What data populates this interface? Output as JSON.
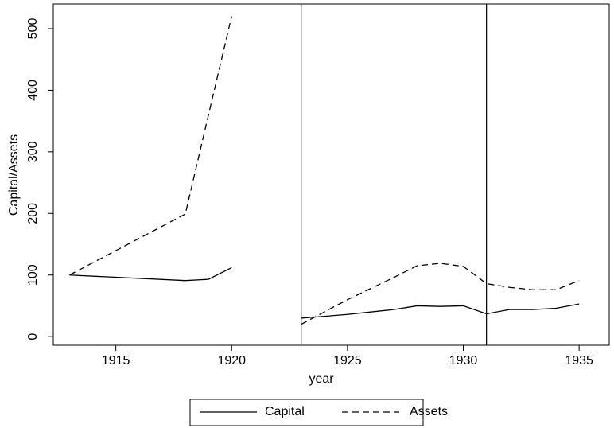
{
  "chart_data": {
    "type": "line",
    "x_label": "year",
    "y_label": "Capital/Assets",
    "x": [
      1913,
      1918,
      1919,
      1920,
      1921,
      1922,
      1923,
      1924,
      1925,
      1926,
      1927,
      1928,
      1929,
      1930,
      1931,
      1932,
      1933,
      1934,
      1935
    ],
    "series": [
      {
        "name": "Capital",
        "color": "#000000",
        "dash": "solid",
        "values": [
          100,
          91,
          93,
          112,
          null,
          null,
          30,
          33,
          36,
          40,
          44,
          50,
          49,
          50,
          37,
          44,
          44,
          46,
          53
        ]
      },
      {
        "name": "Assets",
        "color": "#000000",
        "dash": "dashed",
        "values": [
          100,
          199,
          360,
          520,
          null,
          null,
          20,
          40,
          60,
          78,
          96,
          115,
          119,
          114,
          86,
          80,
          76,
          76,
          91
        ]
      }
    ],
    "reference_lines": [
      1923,
      1931
    ],
    "xlim": [
      1912.3,
      1936.3
    ],
    "xticks": [
      1915,
      1920,
      1925,
      1930,
      1935
    ],
    "ylim": [
      -14,
      540
    ],
    "yticks": [
      0,
      100,
      200,
      300,
      400,
      500
    ],
    "legend": "bottom"
  }
}
